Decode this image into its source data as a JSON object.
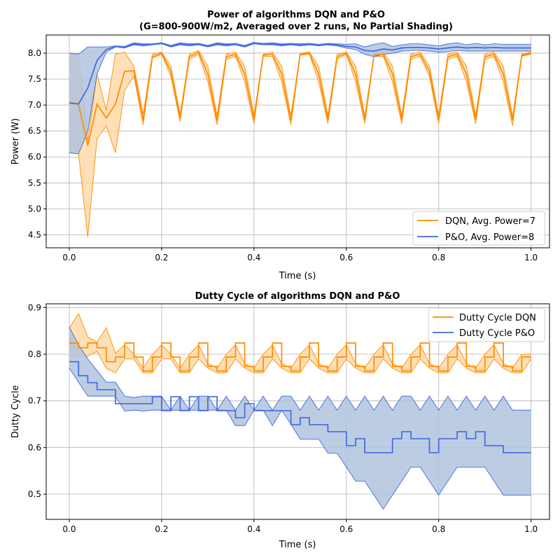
{
  "chart_data": [
    {
      "type": "line",
      "title_line1": "Power of algorithms DQN and P&O",
      "title_line2": "(G=800-900W/m2, Averaged over 2 runs, No Partial Shading)",
      "xlabel": "Time (s)",
      "ylabel": "Power (W)",
      "xlim": [
        -0.05,
        1.04
      ],
      "ylim": [
        4.25,
        8.35
      ],
      "xticks": [
        "0.0",
        "0.2",
        "0.4",
        "0.6",
        "0.8",
        "1.0"
      ],
      "yticks": [
        "4.5",
        "5.0",
        "5.5",
        "6.0",
        "6.5",
        "7.0",
        "7.5",
        "8.0"
      ],
      "grid": true,
      "legend_position": "lower-right",
      "series": [
        {
          "name": "DQN, Avg. Power=7",
          "color": "#ff8c00",
          "band_color": "#ffd9a8",
          "x": [
            0.0,
            0.02,
            0.04,
            0.06,
            0.08,
            0.1,
            0.12,
            0.14,
            0.16,
            0.18,
            0.2,
            0.22,
            0.24,
            0.26,
            0.28,
            0.3,
            0.32,
            0.34,
            0.36,
            0.38,
            0.4,
            0.42,
            0.44,
            0.46,
            0.48,
            0.5,
            0.52,
            0.54,
            0.56,
            0.58,
            0.6,
            0.62,
            0.64,
            0.66,
            0.68,
            0.7,
            0.72,
            0.74,
            0.76,
            0.78,
            0.8,
            0.82,
            0.84,
            0.86,
            0.88,
            0.9,
            0.92,
            0.94,
            0.96,
            0.98,
            1.0
          ],
          "values": [
            7.05,
            7.02,
            6.22,
            7.02,
            6.75,
            7.02,
            7.65,
            7.66,
            6.7,
            7.93,
            8.0,
            7.65,
            6.75,
            7.93,
            8.02,
            7.6,
            6.7,
            7.93,
            7.98,
            7.6,
            6.72,
            7.96,
            7.98,
            7.6,
            6.7,
            7.98,
            8.0,
            7.6,
            6.72,
            7.93,
            8.0,
            7.6,
            6.72,
            7.96,
            7.98,
            7.6,
            6.72,
            7.93,
            7.98,
            7.65,
            6.72,
            7.93,
            7.98,
            7.6,
            6.72,
            7.93,
            7.98,
            7.6,
            6.7,
            7.96,
            8.0
          ],
          "upper": [
            8.0,
            7.98,
            6.32,
            7.6,
            6.9,
            7.98,
            8.02,
            7.75,
            6.82,
            7.98,
            8.02,
            7.75,
            6.82,
            7.98,
            8.05,
            7.75,
            6.8,
            7.98,
            8.02,
            7.75,
            6.8,
            7.98,
            8.02,
            7.75,
            6.8,
            8.0,
            8.02,
            7.75,
            6.8,
            7.98,
            8.02,
            7.75,
            6.8,
            7.98,
            8.02,
            7.75,
            6.8,
            7.98,
            8.02,
            7.75,
            6.8,
            7.98,
            8.02,
            7.75,
            6.8,
            7.98,
            8.02,
            7.75,
            6.78,
            7.98,
            8.02
          ],
          "lower": [
            6.08,
            6.06,
            4.45,
            6.35,
            6.6,
            6.08,
            7.28,
            7.56,
            6.62,
            7.9,
            7.98,
            7.55,
            6.68,
            7.88,
            7.98,
            7.45,
            6.62,
            7.88,
            7.94,
            7.45,
            6.64,
            7.94,
            7.94,
            7.45,
            6.62,
            7.96,
            7.98,
            7.45,
            6.64,
            7.88,
            7.98,
            7.45,
            6.64,
            7.94,
            7.94,
            7.45,
            6.64,
            7.88,
            7.94,
            7.55,
            6.64,
            7.88,
            7.94,
            7.45,
            6.64,
            7.88,
            7.94,
            7.45,
            6.6,
            7.94,
            7.98
          ]
        },
        {
          "name": "P&O, Avg. Power=8",
          "color": "#4169e1",
          "band_color": "#b0c4de",
          "x": [
            0.0,
            0.02,
            0.04,
            0.06,
            0.08,
            0.1,
            0.12,
            0.14,
            0.16,
            0.18,
            0.2,
            0.22,
            0.24,
            0.26,
            0.28,
            0.3,
            0.32,
            0.34,
            0.36,
            0.38,
            0.4,
            0.42,
            0.44,
            0.46,
            0.48,
            0.5,
            0.52,
            0.54,
            0.56,
            0.58,
            0.6,
            0.62,
            0.64,
            0.66,
            0.68,
            0.7,
            0.72,
            0.74,
            0.76,
            0.78,
            0.8,
            0.82,
            0.84,
            0.86,
            0.88,
            0.9,
            0.92,
            0.94,
            0.96,
            0.98,
            1.0
          ],
          "values": [
            7.04,
            7.02,
            7.33,
            7.86,
            8.07,
            8.13,
            8.11,
            8.18,
            8.16,
            8.17,
            8.19,
            8.13,
            8.18,
            8.16,
            8.17,
            8.13,
            8.18,
            8.16,
            8.17,
            8.13,
            8.19,
            8.17,
            8.18,
            8.16,
            8.17,
            8.16,
            8.17,
            8.15,
            8.17,
            8.16,
            8.13,
            8.12,
            8.05,
            8.04,
            8.08,
            8.06,
            8.1,
            8.11,
            8.11,
            8.1,
            8.08,
            8.1,
            8.12,
            8.1,
            8.11,
            8.1,
            8.11,
            8.1,
            8.1,
            8.1,
            8.1
          ],
          "upper": [
            8.0,
            7.98,
            8.12,
            8.12,
            8.12,
            8.14,
            8.13,
            8.2,
            8.18,
            8.18,
            8.2,
            8.15,
            8.2,
            8.18,
            8.19,
            8.15,
            8.2,
            8.18,
            8.19,
            8.15,
            8.21,
            8.19,
            8.2,
            8.18,
            8.19,
            8.18,
            8.19,
            8.17,
            8.19,
            8.18,
            8.17,
            8.18,
            8.12,
            8.17,
            8.2,
            8.13,
            8.16,
            8.18,
            8.18,
            8.16,
            8.14,
            8.18,
            8.2,
            8.16,
            8.19,
            8.16,
            8.18,
            8.17,
            8.17,
            8.17,
            8.17
          ],
          "lower": [
            6.08,
            6.06,
            6.5,
            7.6,
            8.02,
            8.12,
            8.1,
            8.16,
            8.14,
            8.16,
            8.18,
            8.12,
            8.16,
            8.14,
            8.16,
            8.12,
            8.16,
            8.14,
            8.16,
            8.12,
            8.18,
            8.16,
            8.16,
            8.14,
            8.16,
            8.14,
            8.16,
            8.14,
            8.16,
            8.14,
            8.1,
            8.07,
            7.98,
            7.93,
            7.98,
            8.0,
            8.04,
            8.05,
            8.05,
            8.04,
            8.02,
            8.03,
            8.05,
            8.04,
            8.04,
            8.04,
            8.04,
            8.04,
            8.04,
            8.04,
            8.04
          ]
        }
      ]
    },
    {
      "type": "line",
      "title": "Dutty Cycle of algorithms DQN and P&O",
      "xlabel": "Time (s)",
      "ylabel": "Dutty Cycle",
      "xlim": [
        -0.05,
        1.04
      ],
      "ylim": [
        0.446,
        0.908
      ],
      "xticks": [
        "0.0",
        "0.2",
        "0.4",
        "0.6",
        "0.8",
        "1.0"
      ],
      "yticks": [
        "0.5",
        "0.6",
        "0.7",
        "0.8",
        "0.9"
      ],
      "grid": true,
      "legend_position": "upper-right",
      "series": [
        {
          "name": "Dutty Cycle DQN",
          "color": "#ff8c00",
          "band_color": "#ffd9a8",
          "x": [
            0.0,
            0.02,
            0.04,
            0.06,
            0.08,
            0.1,
            0.12,
            0.14,
            0.16,
            0.18,
            0.2,
            0.22,
            0.24,
            0.26,
            0.28,
            0.3,
            0.32,
            0.34,
            0.36,
            0.38,
            0.4,
            0.42,
            0.44,
            0.46,
            0.48,
            0.5,
            0.52,
            0.54,
            0.56,
            0.58,
            0.6,
            0.62,
            0.64,
            0.66,
            0.68,
            0.7,
            0.72,
            0.74,
            0.76,
            0.78,
            0.8,
            0.82,
            0.84,
            0.86,
            0.88,
            0.9,
            0.92,
            0.94,
            0.96,
            0.98,
            1.0
          ],
          "values": [
            0.824,
            0.814,
            0.824,
            0.814,
            0.784,
            0.794,
            0.824,
            0.794,
            0.764,
            0.794,
            0.824,
            0.794,
            0.764,
            0.794,
            0.824,
            0.774,
            0.764,
            0.794,
            0.824,
            0.774,
            0.764,
            0.794,
            0.824,
            0.774,
            0.764,
            0.794,
            0.824,
            0.774,
            0.764,
            0.794,
            0.824,
            0.774,
            0.764,
            0.794,
            0.824,
            0.774,
            0.764,
            0.794,
            0.824,
            0.774,
            0.764,
            0.794,
            0.824,
            0.774,
            0.764,
            0.794,
            0.824,
            0.774,
            0.764,
            0.794,
            0.794
          ],
          "upper": [
            0.856,
            0.887,
            0.837,
            0.826,
            0.857,
            0.802,
            0.82,
            0.8,
            0.77,
            0.8,
            0.82,
            0.8,
            0.77,
            0.8,
            0.82,
            0.78,
            0.77,
            0.8,
            0.82,
            0.78,
            0.77,
            0.8,
            0.82,
            0.78,
            0.77,
            0.8,
            0.82,
            0.78,
            0.77,
            0.8,
            0.82,
            0.78,
            0.77,
            0.8,
            0.82,
            0.78,
            0.77,
            0.8,
            0.82,
            0.78,
            0.77,
            0.8,
            0.82,
            0.78,
            0.77,
            0.8,
            0.82,
            0.78,
            0.77,
            0.8,
            0.8
          ],
          "lower": [
            0.796,
            0.796,
            0.796,
            0.806,
            0.77,
            0.76,
            0.79,
            0.79,
            0.76,
            0.76,
            0.79,
            0.79,
            0.76,
            0.76,
            0.79,
            0.77,
            0.76,
            0.76,
            0.79,
            0.77,
            0.76,
            0.76,
            0.79,
            0.77,
            0.76,
            0.76,
            0.79,
            0.77,
            0.76,
            0.76,
            0.79,
            0.77,
            0.76,
            0.76,
            0.79,
            0.77,
            0.76,
            0.76,
            0.79,
            0.77,
            0.76,
            0.76,
            0.79,
            0.77,
            0.76,
            0.76,
            0.79,
            0.77,
            0.76,
            0.76,
            0.79
          ]
        },
        {
          "name": "Dutty Cycle P&O",
          "color": "#4169e1",
          "band_color": "#b0c4de",
          "x": [
            0.0,
            0.02,
            0.04,
            0.06,
            0.08,
            0.1,
            0.12,
            0.14,
            0.16,
            0.18,
            0.2,
            0.22,
            0.24,
            0.26,
            0.28,
            0.3,
            0.32,
            0.34,
            0.36,
            0.38,
            0.4,
            0.42,
            0.44,
            0.46,
            0.48,
            0.5,
            0.52,
            0.54,
            0.56,
            0.58,
            0.6,
            0.62,
            0.64,
            0.66,
            0.68,
            0.7,
            0.72,
            0.74,
            0.76,
            0.78,
            0.8,
            0.82,
            0.84,
            0.86,
            0.88,
            0.9,
            0.92,
            0.94,
            0.96,
            0.98,
            1.0
          ],
          "values": [
            0.784,
            0.754,
            0.739,
            0.724,
            0.724,
            0.694,
            0.694,
            0.694,
            0.694,
            0.709,
            0.679,
            0.709,
            0.679,
            0.709,
            0.679,
            0.709,
            0.679,
            0.679,
            0.664,
            0.694,
            0.679,
            0.679,
            0.679,
            0.679,
            0.649,
            0.664,
            0.649,
            0.649,
            0.634,
            0.634,
            0.604,
            0.619,
            0.589,
            0.589,
            0.589,
            0.619,
            0.634,
            0.619,
            0.619,
            0.589,
            0.619,
            0.619,
            0.634,
            0.619,
            0.634,
            0.604,
            0.604,
            0.589,
            0.589,
            0.589,
            0.589
          ],
          "upper": [
            0.858,
            0.82,
            0.79,
            0.765,
            0.74,
            0.74,
            0.71,
            0.707,
            0.71,
            0.71,
            0.71,
            0.68,
            0.71,
            0.68,
            0.71,
            0.71,
            0.68,
            0.71,
            0.68,
            0.71,
            0.68,
            0.71,
            0.68,
            0.71,
            0.71,
            0.68,
            0.71,
            0.68,
            0.71,
            0.68,
            0.71,
            0.68,
            0.71,
            0.68,
            0.71,
            0.68,
            0.71,
            0.71,
            0.68,
            0.71,
            0.68,
            0.71,
            0.68,
            0.71,
            0.68,
            0.71,
            0.68,
            0.71,
            0.68,
            0.68,
            0.68
          ],
          "lower": [
            0.77,
            0.74,
            0.71,
            0.71,
            0.71,
            0.71,
            0.678,
            0.68,
            0.678,
            0.68,
            0.68,
            0.68,
            0.68,
            0.68,
            0.68,
            0.68,
            0.68,
            0.68,
            0.647,
            0.647,
            0.68,
            0.68,
            0.647,
            0.68,
            0.65,
            0.618,
            0.618,
            0.618,
            0.588,
            0.588,
            0.558,
            0.528,
            0.528,
            0.498,
            0.468,
            0.498,
            0.528,
            0.558,
            0.558,
            0.528,
            0.498,
            0.528,
            0.558,
            0.558,
            0.558,
            0.558,
            0.528,
            0.498,
            0.498,
            0.498,
            0.498
          ]
        }
      ]
    }
  ]
}
